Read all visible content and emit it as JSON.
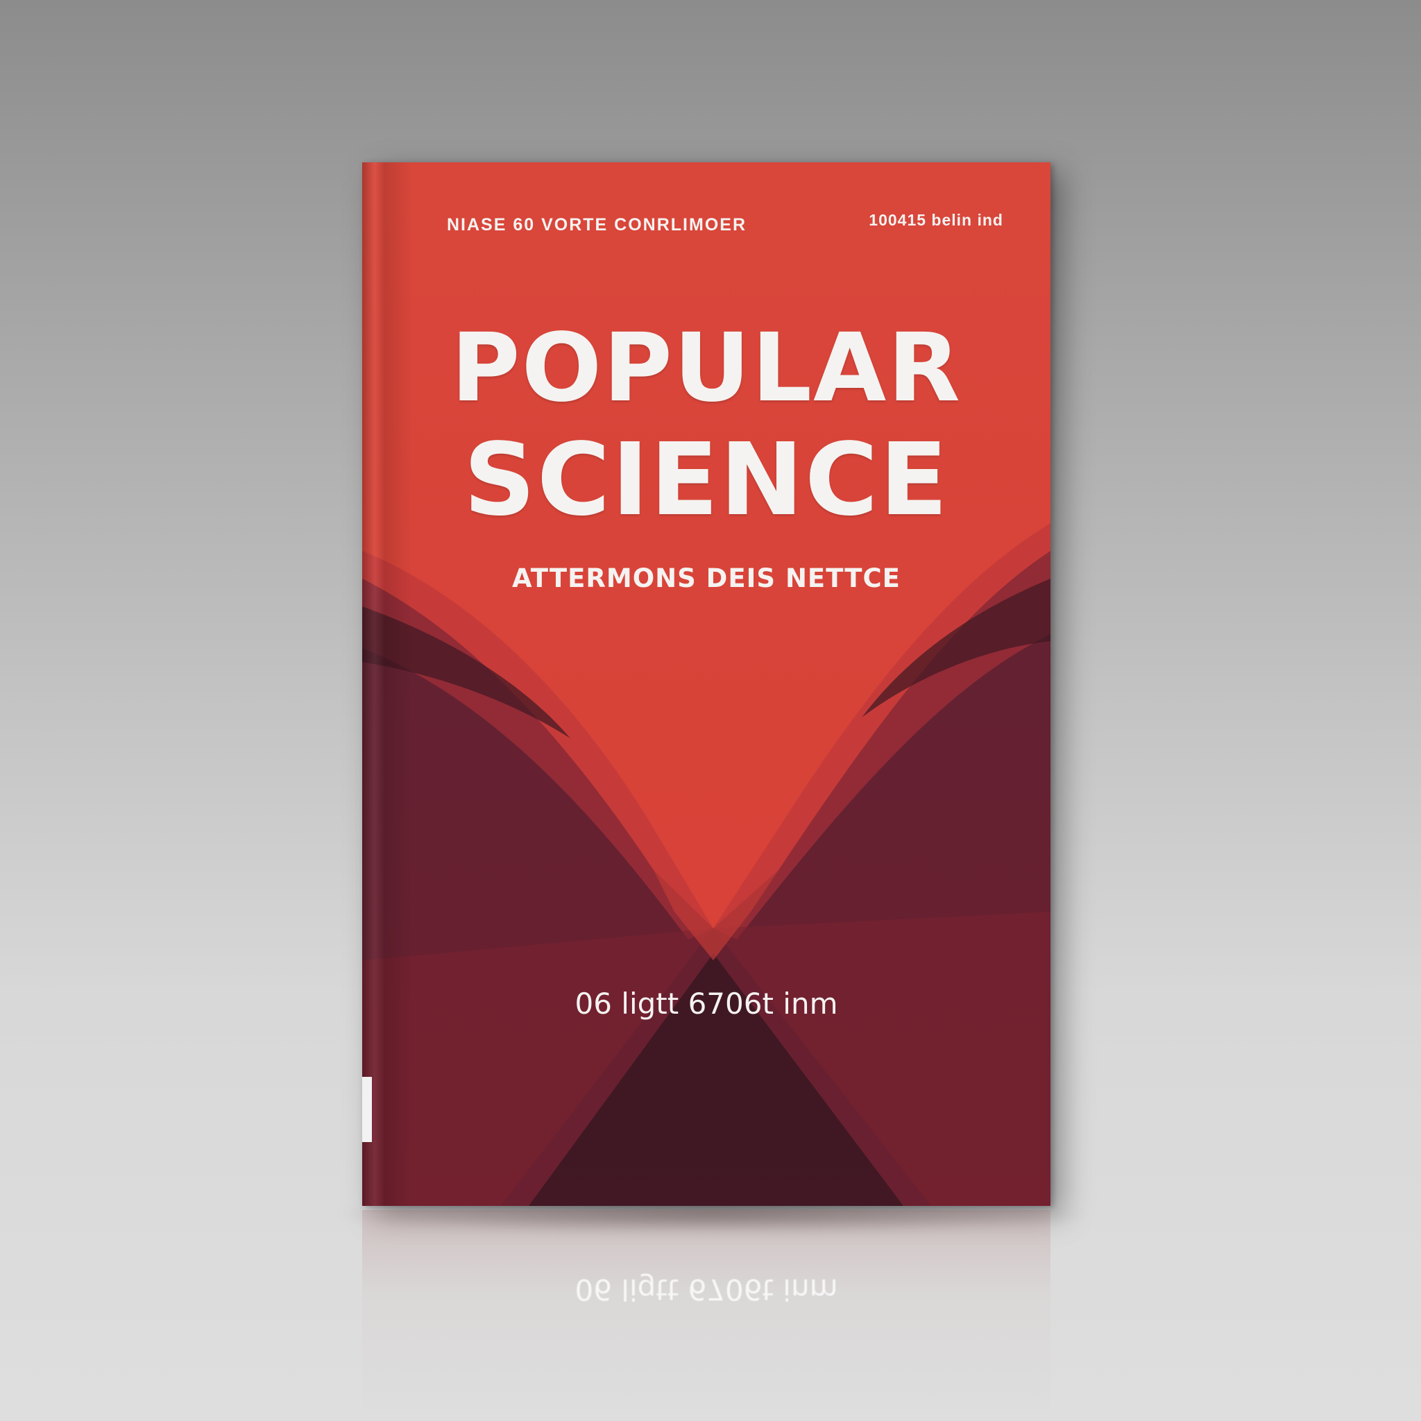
{
  "cover": {
    "top_left": "NIASE 60 VORTE CONRLIMOER",
    "top_right": "100415 belin ind",
    "title_line1": "POPULAR",
    "title_line2": "SCIENCE",
    "subtitle": "ATTERMONS DEIS NETTCE",
    "author": "06 ligtt 6706t inm"
  },
  "reflection": {
    "author": "06 ligtt 6706t inm"
  },
  "colors": {
    "background_top": "#8c8c8c",
    "background_bottom": "#dedede",
    "cover_red": "#d8453a",
    "cover_mid_red": "#a8303a",
    "cover_maroon": "#5a2030",
    "cover_dark": "#3a1822",
    "text": "#f5f3f1"
  }
}
